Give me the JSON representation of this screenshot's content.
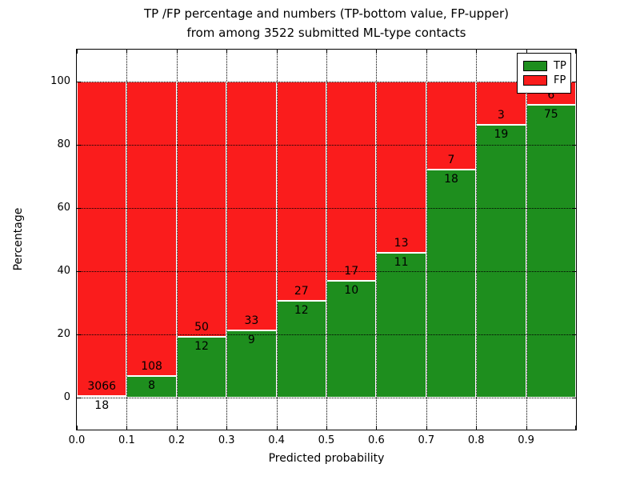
{
  "title": {
    "line1": "TP /FP percentage and numbers (TP-bottom value, FP-upper)",
    "line2": "from among 3522 submitted ML-type contacts"
  },
  "axes": {
    "xlabel": "Predicted probability",
    "ylabel": "Percentage",
    "xtick_labels": [
      "0.0",
      "0.1",
      "0.2",
      "0.3",
      "0.4",
      "0.5",
      "0.6",
      "0.7",
      "0.8",
      "0.9"
    ],
    "ytick_values": [
      0,
      20,
      40,
      60,
      80,
      100
    ],
    "xlim": [
      0.0,
      1.0
    ],
    "ylim": [
      -10,
      110
    ],
    "grid": "dotted"
  },
  "legend": {
    "position": "upper-right",
    "items": [
      {
        "label": "TP",
        "color": "#1e8e1e"
      },
      {
        "label": "FP",
        "color": "#fa1c1c"
      }
    ]
  },
  "chart_data": {
    "type": "bar",
    "stacked": true,
    "normalized": "percent",
    "bin_width": 0.1,
    "bin_starts": [
      0.0,
      0.1,
      0.2,
      0.3,
      0.4,
      0.5,
      0.6,
      0.7,
      0.8,
      0.9
    ],
    "series": [
      {
        "name": "TP",
        "color": "#1e8e1e",
        "counts": [
          18,
          8,
          12,
          9,
          12,
          10,
          11,
          18,
          19,
          75
        ]
      },
      {
        "name": "FP",
        "color": "#fa1c1c",
        "counts": [
          3066,
          108,
          50,
          33,
          27,
          17,
          13,
          7,
          3,
          6
        ]
      }
    ],
    "tp_percent": [
      0.58,
      6.9,
      19.35,
      21.43,
      30.77,
      37.04,
      45.83,
      72.0,
      86.36,
      92.59
    ],
    "total_contacts": 3522,
    "title": "TP /FP percentage and numbers (TP-bottom value, FP-upper) from among 3522 submitted ML-type contacts",
    "xlabel": "Predicted probability",
    "ylabel": "Percentage"
  }
}
